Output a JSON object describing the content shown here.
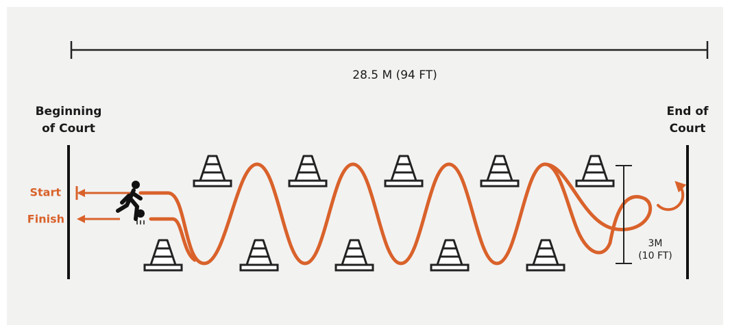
{
  "dimension": {
    "length": "28.5 M (94 FT)",
    "width": [
      "3M",
      "(10 FT)"
    ]
  },
  "court": {
    "beginning": [
      "Beginning",
      "of Court"
    ],
    "end": [
      "End of",
      "Court"
    ]
  },
  "labels": {
    "start": "Start",
    "finish": "Finish"
  }
}
